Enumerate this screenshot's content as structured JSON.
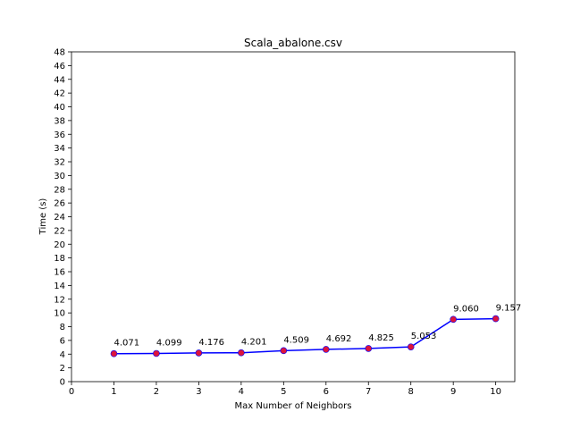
{
  "chart_data": {
    "type": "line",
    "title": "Scala_abalone.csv",
    "xlabel": "Max Number of Neighbors",
    "ylabel": "Time (s)",
    "xlim": [
      0,
      10.45
    ],
    "ylim": [
      0,
      48
    ],
    "xticks": [
      0,
      1,
      2,
      3,
      4,
      5,
      6,
      7,
      8,
      9,
      10
    ],
    "yticks": [
      0,
      2,
      4,
      6,
      8,
      10,
      12,
      14,
      16,
      18,
      20,
      22,
      24,
      26,
      28,
      30,
      32,
      34,
      36,
      38,
      40,
      42,
      44,
      46,
      48
    ],
    "grid": false,
    "series": [
      {
        "name": "Time",
        "line_color": "#0000ff",
        "marker_color": "#dc143c",
        "x": [
          1,
          2,
          3,
          4,
          5,
          6,
          7,
          8,
          9,
          10
        ],
        "y": [
          4.071,
          4.099,
          4.176,
          4.201,
          4.509,
          4.692,
          4.825,
          5.053,
          9.06,
          9.157
        ],
        "labels": [
          "4.071",
          "4.099",
          "4.176",
          "4.201",
          "4.509",
          "4.692",
          "4.825",
          "5.053",
          "9.060",
          "9.157"
        ]
      }
    ]
  }
}
